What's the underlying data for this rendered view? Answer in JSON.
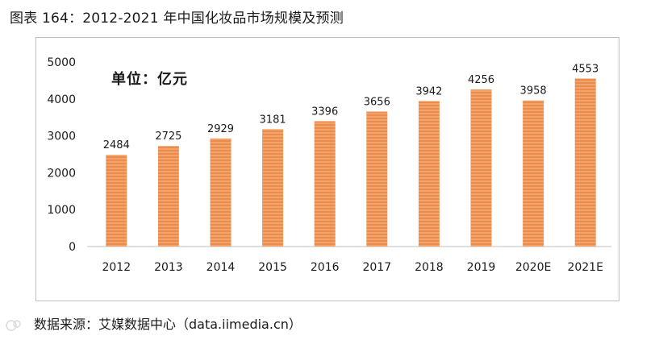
{
  "figure": {
    "title": "图表 164：2012-2021 年中国化妆品市场规模及预测",
    "source": "数据来源：艾媒数据中心（data.iimedia.cn）"
  },
  "colors": {
    "bar_fill": "#f2a36b",
    "bar_stripe": "#e8823f",
    "axis": "#bfbfbf",
    "text": "#1a1a1a"
  },
  "chart_data": {
    "type": "bar",
    "unit_label": "单位：亿元",
    "categories": [
      "2012",
      "2013",
      "2014",
      "2015",
      "2016",
      "2017",
      "2018",
      "2019",
      "2020E",
      "2021E"
    ],
    "values": [
      2484,
      2725,
      2929,
      3181,
      3396,
      3656,
      3942,
      4256,
      3958,
      4553
    ],
    "yticks": [
      0,
      1000,
      2000,
      3000,
      4000,
      5000
    ],
    "ylim": [
      0,
      5000
    ],
    "xlabel": "",
    "ylabel": "",
    "grid": false,
    "legend": "none",
    "data_labels": true
  }
}
